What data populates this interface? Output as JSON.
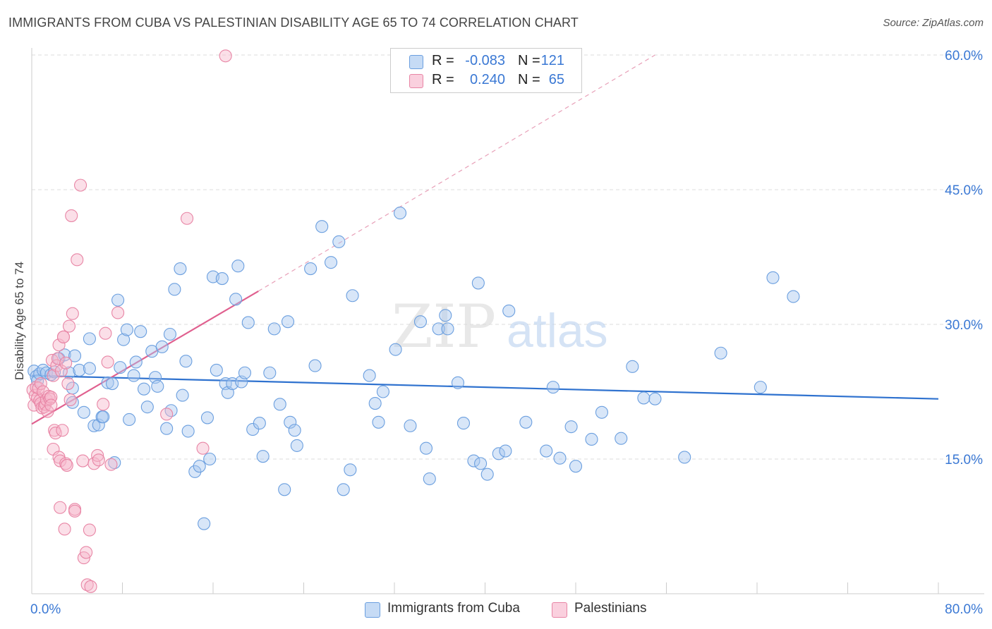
{
  "header": {
    "title": "IMMIGRANTS FROM CUBA VS PALESTINIAN DISABILITY AGE 65 TO 74 CORRELATION CHART",
    "source": "Source: ZipAtlas.com"
  },
  "watermark": {
    "zip": "ZIP",
    "atlas": "atlas"
  },
  "legend": {
    "rows": [
      {
        "r_label": "R =",
        "r_value": "-0.083",
        "n_label": "N =",
        "n_value": "121",
        "color": "#a9c8f0"
      },
      {
        "r_label": "R =",
        "r_value": "0.240",
        "n_label": "N =",
        "n_value": "65",
        "color": "#f7b8cc"
      }
    ]
  },
  "bottom_legend": {
    "items": [
      {
        "label": "Immigrants from Cuba",
        "color": "#a9c8f0"
      },
      {
        "label": "Palestinians",
        "color": "#f7b8cc"
      }
    ]
  },
  "chart_data": {
    "type": "scatter",
    "title": "IMMIGRANTS FROM CUBA VS PALESTINIAN DISABILITY AGE 65 TO 74 CORRELATION CHART",
    "xlabel": "",
    "ylabel": "Disability Age 65 to 74",
    "xlim": [
      0,
      80
    ],
    "ylim": [
      0,
      60
    ],
    "x_tick_labels": [
      "0.0%",
      "80.0%"
    ],
    "y_ticks": [
      15,
      30,
      45,
      60
    ],
    "y_tick_labels": [
      "15.0%",
      "30.0%",
      "45.0%",
      "60.0%"
    ],
    "grid": "horizontal dashed",
    "legend_placement": "top-center and bottom",
    "colors": {
      "cuba_fill": "#a9c8f0",
      "cuba_stroke": "#6b9fdf",
      "cuba_line": "#2f72cf",
      "pal_fill": "#f7b8cc",
      "pal_stroke": "#e885a5",
      "pal_line": "#e0608f",
      "axis_text": "#3a78d4"
    },
    "series": [
      {
        "name": "Immigrants from Cuba",
        "trend": {
          "x": [
            0,
            80
          ],
          "y": [
            24.3,
            21.7
          ],
          "style": "solid"
        },
        "points": [
          [
            0.2,
            24.8
          ],
          [
            0.4,
            24.2
          ],
          [
            0.5,
            23.7
          ],
          [
            0.7,
            24.5
          ],
          [
            1.0,
            24.9
          ],
          [
            1.3,
            24.6
          ],
          [
            1.7,
            24.4
          ],
          [
            2.0,
            24.7
          ],
          [
            2.4,
            26.2
          ],
          [
            2.9,
            26.6
          ],
          [
            3.3,
            24.6
          ],
          [
            3.6,
            21.3
          ],
          [
            3.6,
            22.9
          ],
          [
            3.8,
            26.5
          ],
          [
            4.2,
            24.9
          ],
          [
            4.6,
            20.2
          ],
          [
            5.1,
            25.1
          ],
          [
            5.1,
            28.4
          ],
          [
            5.5,
            18.7
          ],
          [
            5.9,
            18.8
          ],
          [
            6.2,
            19.7
          ],
          [
            6.3,
            19.7
          ],
          [
            6.7,
            23.5
          ],
          [
            7.1,
            23.4
          ],
          [
            7.3,
            14.6
          ],
          [
            7.6,
            32.7
          ],
          [
            7.8,
            25.2
          ],
          [
            8.1,
            28.3
          ],
          [
            8.4,
            29.4
          ],
          [
            8.6,
            19.4
          ],
          [
            9.0,
            24.3
          ],
          [
            9.2,
            25.8
          ],
          [
            9.6,
            29.2
          ],
          [
            9.9,
            22.8
          ],
          [
            10.2,
            20.8
          ],
          [
            10.6,
            27.0
          ],
          [
            10.9,
            24.1
          ],
          [
            11.1,
            23.1
          ],
          [
            11.5,
            27.5
          ],
          [
            11.9,
            18.4
          ],
          [
            12.2,
            28.9
          ],
          [
            12.3,
            20.4
          ],
          [
            12.6,
            33.9
          ],
          [
            13.1,
            36.2
          ],
          [
            13.3,
            22.1
          ],
          [
            13.6,
            25.9
          ],
          [
            13.8,
            18.1
          ],
          [
            14.4,
            13.6
          ],
          [
            14.8,
            14.2
          ],
          [
            15.2,
            7.8
          ],
          [
            15.5,
            19.6
          ],
          [
            15.7,
            15.0
          ],
          [
            16.0,
            35.3
          ],
          [
            16.3,
            24.9
          ],
          [
            16.8,
            35.1
          ],
          [
            17.1,
            23.4
          ],
          [
            17.3,
            22.4
          ],
          [
            17.7,
            23.4
          ],
          [
            18.0,
            32.8
          ],
          [
            18.2,
            36.5
          ],
          [
            18.5,
            23.6
          ],
          [
            18.8,
            24.6
          ],
          [
            19.1,
            30.2
          ],
          [
            19.5,
            18.3
          ],
          [
            20.1,
            19.0
          ],
          [
            20.4,
            15.3
          ],
          [
            21.0,
            24.6
          ],
          [
            21.4,
            29.5
          ],
          [
            21.9,
            21.1
          ],
          [
            22.3,
            11.6
          ],
          [
            22.6,
            30.3
          ],
          [
            22.8,
            19.1
          ],
          [
            23.2,
            18.2
          ],
          [
            23.4,
            16.5
          ],
          [
            24.6,
            36.2
          ],
          [
            25.0,
            25.4
          ],
          [
            25.6,
            40.9
          ],
          [
            26.4,
            36.9
          ],
          [
            27.1,
            39.2
          ],
          [
            27.5,
            11.6
          ],
          [
            28.1,
            13.8
          ],
          [
            28.3,
            33.2
          ],
          [
            29.8,
            24.3
          ],
          [
            30.3,
            21.2
          ],
          [
            30.6,
            19.1
          ],
          [
            31.0,
            22.5
          ],
          [
            32.1,
            27.2
          ],
          [
            32.5,
            42.4
          ],
          [
            33.4,
            18.7
          ],
          [
            34.3,
            30.3
          ],
          [
            34.8,
            16.2
          ],
          [
            35.1,
            12.8
          ],
          [
            35.9,
            29.5
          ],
          [
            36.5,
            31.0
          ],
          [
            36.7,
            29.5
          ],
          [
            37.6,
            23.5
          ],
          [
            38.1,
            19.0
          ],
          [
            39.0,
            14.8
          ],
          [
            39.4,
            34.6
          ],
          [
            39.6,
            14.5
          ],
          [
            40.2,
            13.3
          ],
          [
            41.2,
            15.6
          ],
          [
            41.8,
            15.9
          ],
          [
            42.1,
            31.5
          ],
          [
            43.6,
            19.1
          ],
          [
            45.4,
            15.9
          ],
          [
            46.0,
            23.0
          ],
          [
            46.6,
            15.1
          ],
          [
            47.6,
            18.6
          ],
          [
            48.0,
            14.2
          ],
          [
            49.4,
            17.2
          ],
          [
            50.3,
            20.2
          ],
          [
            52.0,
            17.3
          ],
          [
            53.0,
            25.3
          ],
          [
            54.0,
            21.8
          ],
          [
            55.0,
            21.7
          ],
          [
            57.6,
            15.2
          ],
          [
            60.8,
            26.8
          ],
          [
            64.3,
            23.0
          ],
          [
            65.4,
            35.2
          ],
          [
            67.2,
            33.1
          ]
        ]
      },
      {
        "name": "Palestinians",
        "trend": {
          "x": [
            0,
            20
          ],
          "y": [
            18.9,
            33.7
          ],
          "style": "solid",
          "extended_to": [
            55,
            60
          ],
          "extended_style": "dashed"
        },
        "points": [
          [
            0.1,
            22.7
          ],
          [
            0.2,
            21.0
          ],
          [
            0.3,
            22.1
          ],
          [
            0.4,
            23.0
          ],
          [
            0.5,
            21.8
          ],
          [
            0.6,
            22.9
          ],
          [
            0.7,
            21.5
          ],
          [
            0.8,
            23.4
          ],
          [
            0.8,
            21.2
          ],
          [
            0.9,
            20.7
          ],
          [
            1.0,
            22.5
          ],
          [
            1.1,
            20.8
          ],
          [
            1.2,
            21.1
          ],
          [
            1.3,
            21.6
          ],
          [
            1.4,
            20.3
          ],
          [
            1.5,
            22.0
          ],
          [
            1.6,
            21.7
          ],
          [
            1.7,
            21.9
          ],
          [
            1.7,
            21.0
          ],
          [
            1.8,
            26.0
          ],
          [
            1.9,
            24.3
          ],
          [
            1.9,
            16.1
          ],
          [
            2.0,
            18.2
          ],
          [
            2.1,
            17.9
          ],
          [
            2.2,
            25.4
          ],
          [
            2.3,
            26.2
          ],
          [
            2.4,
            27.7
          ],
          [
            2.4,
            15.2
          ],
          [
            2.5,
            9.6
          ],
          [
            2.5,
            14.8
          ],
          [
            2.6,
            24.8
          ],
          [
            2.7,
            18.2
          ],
          [
            2.8,
            28.6
          ],
          [
            2.8,
            28.6
          ],
          [
            2.9,
            7.2
          ],
          [
            3.0,
            25.7
          ],
          [
            3.0,
            14.5
          ],
          [
            3.1,
            14.3
          ],
          [
            3.2,
            23.4
          ],
          [
            3.3,
            29.8
          ],
          [
            3.4,
            21.6
          ],
          [
            3.5,
            42.1
          ],
          [
            3.6,
            31.2
          ],
          [
            3.8,
            9.4
          ],
          [
            3.8,
            9.2
          ],
          [
            4.0,
            37.2
          ],
          [
            4.3,
            45.5
          ],
          [
            4.5,
            14.8
          ],
          [
            4.6,
            4.0
          ],
          [
            4.8,
            4.6
          ],
          [
            4.9,
            1.0
          ],
          [
            5.1,
            7.1
          ],
          [
            5.2,
            0.8
          ],
          [
            5.5,
            14.5
          ],
          [
            5.8,
            15.4
          ],
          [
            5.9,
            14.9
          ],
          [
            6.3,
            21.1
          ],
          [
            6.5,
            29.0
          ],
          [
            6.7,
            25.8
          ],
          [
            7.0,
            14.4
          ],
          [
            7.6,
            31.3
          ],
          [
            13.7,
            41.8
          ],
          [
            15.1,
            16.2
          ],
          [
            17.1,
            59.9
          ],
          [
            11.9,
            20.0
          ]
        ]
      }
    ]
  }
}
